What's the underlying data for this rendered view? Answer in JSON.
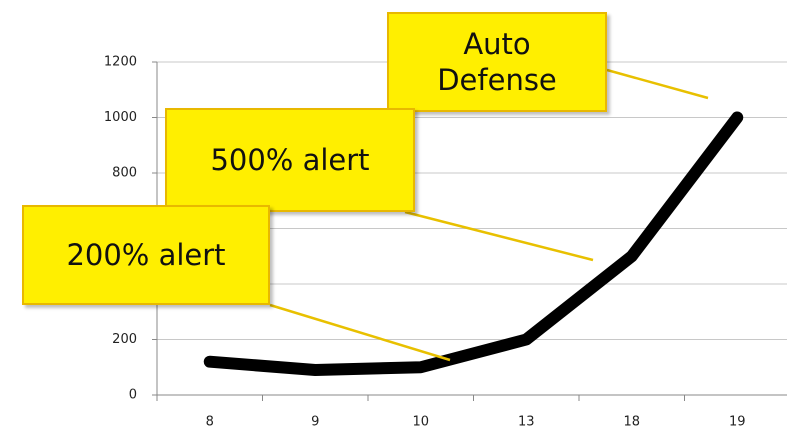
{
  "chart_data": {
    "type": "line",
    "categories": [
      "8",
      "9",
      "10",
      "13",
      "18",
      "19"
    ],
    "values": [
      120,
      90,
      100,
      200,
      500,
      1000
    ],
    "color": "#000000",
    "ylim": [
      0,
      1200
    ],
    "yticks": [
      0,
      200,
      400,
      600,
      800,
      1000,
      1200
    ],
    "grid": true,
    "annotations": [
      {
        "text": "Auto Defense"
      },
      {
        "text": "500% alert"
      },
      {
        "text": "200% alert"
      }
    ]
  }
}
